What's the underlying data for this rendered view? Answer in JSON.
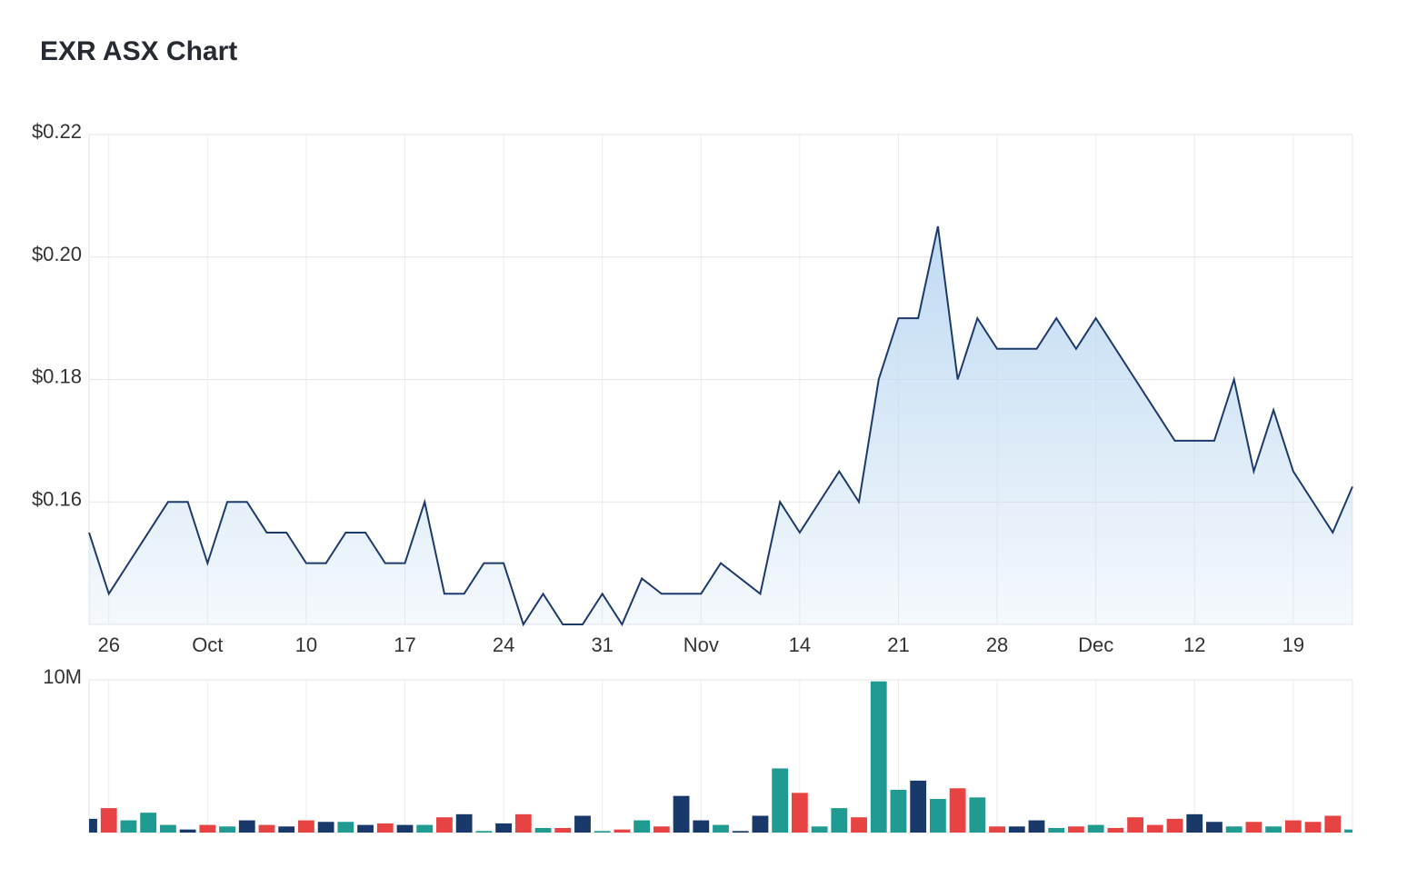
{
  "title": "EXR ASX Chart",
  "chart_data": [
    {
      "type": "area",
      "name": "price",
      "ylim": [
        0.14,
        0.22
      ],
      "yticks": [
        0.16,
        0.18,
        0.2,
        0.22
      ],
      "ytick_labels": [
        "$0.16",
        "$0.18",
        "$0.20",
        "$0.22"
      ],
      "xlim": [
        0,
        64
      ],
      "xticks": [
        1,
        6,
        11,
        16,
        21,
        26,
        31,
        36,
        41,
        46,
        51,
        56,
        61
      ],
      "xtick_labels": [
        "26",
        "Oct",
        "10",
        "17",
        "24",
        "31",
        "Nov",
        "14",
        "21",
        "28",
        "Dec",
        "12",
        "19"
      ],
      "x": [
        0,
        1,
        2,
        3,
        4,
        5,
        6,
        7,
        8,
        9,
        10,
        11,
        12,
        13,
        14,
        15,
        16,
        17,
        18,
        19,
        20,
        21,
        22,
        23,
        24,
        25,
        26,
        27,
        28,
        29,
        30,
        31,
        32,
        33,
        34,
        35,
        36,
        37,
        38,
        39,
        40,
        41,
        42,
        43,
        44,
        45,
        46,
        47,
        48,
        49,
        50,
        51,
        52,
        53,
        54,
        55,
        56,
        57,
        58,
        59,
        60,
        61,
        62,
        63,
        64
      ],
      "values": [
        0.155,
        0.145,
        0.15,
        0.155,
        0.16,
        0.16,
        0.15,
        0.16,
        0.16,
        0.155,
        0.155,
        0.15,
        0.15,
        0.155,
        0.155,
        0.15,
        0.15,
        0.16,
        0.145,
        0.145,
        0.15,
        0.15,
        0.14,
        0.145,
        0.14,
        0.14,
        0.145,
        0.14,
        0.1475,
        0.145,
        0.145,
        0.145,
        0.15,
        0.1475,
        0.145,
        0.16,
        0.155,
        0.16,
        0.165,
        0.16,
        0.18,
        0.19,
        0.19,
        0.205,
        0.18,
        0.19,
        0.185,
        0.185,
        0.185,
        0.19,
        0.185,
        0.19,
        0.185,
        0.18,
        0.175,
        0.17,
        0.17,
        0.17,
        0.18,
        0.165,
        0.175,
        0.165,
        0.16,
        0.155,
        0.1625
      ],
      "line_color": "#1c3a6b",
      "fill_color": "#bcd8f2",
      "grid": true
    },
    {
      "type": "bar",
      "name": "volume",
      "ylim": [
        0,
        10
      ],
      "yticks": [
        10
      ],
      "ytick_labels": [
        "10M"
      ],
      "unit": "M",
      "x": [
        0,
        1,
        2,
        3,
        4,
        5,
        6,
        7,
        8,
        9,
        10,
        11,
        12,
        13,
        14,
        15,
        16,
        17,
        18,
        19,
        20,
        21,
        22,
        23,
        24,
        25,
        26,
        27,
        28,
        29,
        30,
        31,
        32,
        33,
        34,
        35,
        36,
        37,
        38,
        39,
        40,
        41,
        42,
        43,
        44,
        45,
        46,
        47,
        48,
        49,
        50,
        51,
        52,
        53,
        54,
        55,
        56,
        57,
        58,
        59,
        60,
        61,
        62,
        63,
        64
      ],
      "values": [
        0.9,
        1.6,
        0.8,
        1.3,
        0.5,
        0.2,
        0.5,
        0.4,
        0.8,
        0.5,
        0.4,
        0.8,
        0.7,
        0.7,
        0.5,
        0.6,
        0.5,
        0.5,
        1.0,
        1.2,
        0.1,
        0.6,
        1.2,
        0.3,
        0.3,
        1.1,
        0.1,
        0.2,
        0.8,
        0.4,
        2.4,
        0.8,
        0.5,
        0.1,
        1.1,
        4.2,
        2.6,
        0.4,
        1.6,
        1.0,
        9.9,
        2.8,
        3.4,
        2.2,
        2.9,
        2.3,
        0.4,
        0.4,
        0.8,
        0.3,
        0.4,
        0.5,
        0.3,
        1.0,
        0.5,
        0.9,
        1.2,
        0.7,
        0.4,
        0.7,
        0.4,
        0.8,
        0.7,
        1.1,
        0.2
      ],
      "bar_colors": [
        "navy",
        "red",
        "teal",
        "teal",
        "teal",
        "navy",
        "red",
        "teal",
        "navy",
        "red",
        "navy",
        "red",
        "navy",
        "teal",
        "navy",
        "red",
        "navy",
        "teal",
        "red",
        "navy",
        "teal",
        "navy",
        "red",
        "teal",
        "red",
        "navy",
        "teal",
        "red",
        "teal",
        "red",
        "navy",
        "navy",
        "teal",
        "navy",
        "navy",
        "teal",
        "red",
        "teal",
        "teal",
        "red",
        "teal",
        "teal",
        "navy",
        "teal",
        "red",
        "teal",
        "red",
        "navy",
        "navy",
        "teal",
        "red",
        "teal",
        "red",
        "red",
        "red",
        "red",
        "navy",
        "navy",
        "teal",
        "red",
        "teal",
        "red",
        "red",
        "red",
        "teal"
      ],
      "palette": {
        "navy": "#1a396b",
        "red": "#e84343",
        "teal": "#1f9b91"
      },
      "grid": true
    }
  ]
}
